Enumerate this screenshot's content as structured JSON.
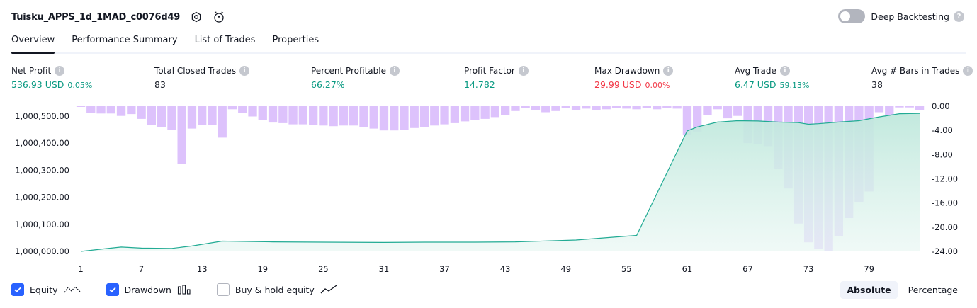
{
  "strategy": {
    "name": "Tuisku_APPS_1d_1MAD_c0076d49",
    "settings_icon": "settings-icon",
    "alert_icon": "add-alert-icon"
  },
  "deep_backtesting": {
    "label": "Deep Backtesting",
    "enabled": false,
    "help_icon": "?"
  },
  "tabs": [
    {
      "label": "Overview",
      "active": true
    },
    {
      "label": "Performance Summary",
      "active": false
    },
    {
      "label": "List of Trades",
      "active": false
    },
    {
      "label": "Properties",
      "active": false
    }
  ],
  "info_glyph": "i",
  "stats": {
    "net_profit": {
      "label": "Net Profit",
      "value": "536.93 USD",
      "pct": "0.05%"
    },
    "total_closed_trades": {
      "label": "Total Closed Trades",
      "value": "83"
    },
    "percent_profitable": {
      "label": "Percent Profitable",
      "value": "66.27%"
    },
    "profit_factor": {
      "label": "Profit Factor",
      "value": "14.782"
    },
    "max_drawdown": {
      "label": "Max Drawdown",
      "value": "29.99 USD",
      "pct": "0.00%"
    },
    "avg_trade": {
      "label": "Avg Trade",
      "value": "6.47 USD",
      "pct": "59.13%"
    },
    "avg_bars": {
      "label": "Avg # Bars in Trades",
      "value": "38"
    }
  },
  "colors": {
    "positive": "#089981",
    "negative": "#f23645",
    "equity_line": "#22ab94",
    "equity_fill": "#cdeee6",
    "drawdown_bar": "#d7b7fb",
    "accent": "#2962ff"
  },
  "chart_data": {
    "type": "bar",
    "equity_axis": {
      "ticks": [
        1000000,
        1000100,
        1000200,
        1000300,
        1000400,
        1000500
      ],
      "tick_labels": [
        "1,000,000.00",
        "1,000,100.00",
        "1,000,200.00",
        "1,000,300.00",
        "1,000,400.00",
        "1,000,500.00"
      ],
      "ylim": [
        1000000,
        1000500
      ]
    },
    "drawdown_axis": {
      "ticks": [
        0,
        -4,
        -8,
        -12,
        -16,
        -20,
        -24
      ],
      "tick_labels": [
        "0.00",
        "-4.00",
        "-8.00",
        "-12.00",
        "-16.00",
        "-20.00",
        "-24.00"
      ],
      "ylim": [
        -24,
        0
      ]
    },
    "x_ticks": [
      1,
      7,
      13,
      19,
      25,
      31,
      37,
      43,
      49,
      55,
      61,
      67,
      73,
      79
    ],
    "x_tick_labels": [
      "1",
      "7",
      "13",
      "19",
      "25",
      "31",
      "37",
      "43",
      "49",
      "55",
      "61",
      "67",
      "73",
      "79"
    ],
    "x_range": [
      1,
      84
    ],
    "equity": {
      "x": [
        1,
        3,
        5,
        7,
        10,
        12,
        15,
        20,
        25,
        31,
        35,
        40,
        44,
        50,
        56,
        61,
        62,
        64,
        66,
        68,
        70,
        72,
        73,
        74,
        76,
        78,
        80,
        82,
        84
      ],
      "values": [
        1000000,
        1000008,
        1000016,
        1000012,
        1000011,
        1000020,
        1000038,
        1000035,
        1000034,
        1000033,
        1000034,
        1000034,
        1000035,
        1000042,
        1000059,
        1000445,
        1000460,
        1000478,
        1000483,
        1000482,
        1000478,
        1000476,
        1000470,
        1000472,
        1000478,
        1000483,
        1000497,
        1000509,
        1000510
      ]
    },
    "drawdown": {
      "x": [
        1,
        2,
        3,
        4,
        5,
        6,
        7,
        8,
        9,
        10,
        11,
        12,
        13,
        14,
        15,
        16,
        17,
        18,
        19,
        20,
        21,
        22,
        23,
        24,
        25,
        26,
        27,
        28,
        29,
        30,
        31,
        32,
        33,
        34,
        35,
        36,
        37,
        38,
        39,
        40,
        41,
        42,
        43,
        44,
        45,
        46,
        47,
        48,
        49,
        50,
        51,
        52,
        53,
        54,
        55,
        56,
        57,
        58,
        59,
        60,
        61,
        62,
        63,
        64,
        65,
        66,
        67,
        68,
        69,
        70,
        71,
        72,
        73,
        74,
        75,
        76,
        77,
        78,
        79,
        80,
        81,
        82,
        83,
        84
      ],
      "values": [
        -0.1,
        -1.1,
        -1.2,
        -1.2,
        -1.6,
        -1.3,
        -2.1,
        -3.1,
        -3.4,
        -3.9,
        -9.6,
        -3.7,
        -3.1,
        -3.1,
        -5.2,
        -0.5,
        -1.1,
        -1.7,
        -2.3,
        -2.7,
        -2.8,
        -3,
        -3,
        -3.1,
        -3.2,
        -3.3,
        -3.2,
        -3.2,
        -3.5,
        -3.7,
        -4,
        -4,
        -3.9,
        -3.6,
        -3.4,
        -3.2,
        -3,
        -2.8,
        -2.5,
        -2.3,
        -2.1,
        -1.8,
        -1.5,
        -0.8,
        -0.3,
        -0.7,
        -1,
        -0.8,
        -0.3,
        -0.6,
        -0.4,
        -0.6,
        -0.5,
        -0.3,
        -0.4,
        -0.5,
        -0.3,
        -0.5,
        -0.3,
        -0.4,
        -4.7,
        -4.2,
        -1.4,
        -0.5,
        -2,
        -1.6,
        -6.1,
        -6.3,
        -6.6,
        -10.4,
        -13.6,
        -19.4,
        -22.5,
        -23.6,
        -24,
        -21.5,
        -18.5,
        -15.8,
        -14.1,
        -1,
        -1.4,
        -0.2,
        -0.2,
        -0.6
      ]
    }
  },
  "legend": [
    {
      "label": "Equity",
      "checked": true,
      "icon": "equity-line-icon"
    },
    {
      "label": "Drawdown",
      "checked": true,
      "icon": "drawdown-bars-icon"
    },
    {
      "label": "Buy & hold equity",
      "checked": false,
      "icon": "buy-hold-line-icon"
    }
  ],
  "modes": [
    {
      "label": "Absolute",
      "active": true
    },
    {
      "label": "Percentage",
      "active": false
    }
  ]
}
